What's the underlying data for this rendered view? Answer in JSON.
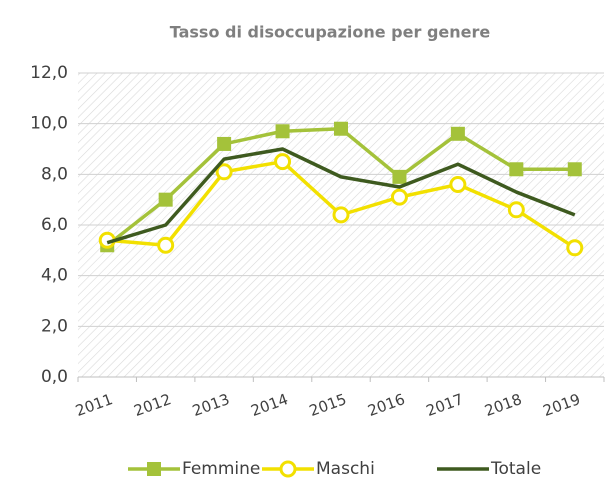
{
  "chart_data": {
    "type": "line",
    "title": "Tasso di disoccupazione per genere",
    "categories": [
      "2011",
      "2012",
      "2013",
      "2014",
      "2015",
      "2016",
      "2017",
      "2018",
      "2019"
    ],
    "series": [
      {
        "name": "Femmine",
        "color": "#a4c23a",
        "marker": "square",
        "values": [
          5.2,
          7.0,
          9.2,
          9.7,
          9.8,
          7.9,
          9.6,
          8.2,
          8.2
        ]
      },
      {
        "name": "Maschi",
        "color": "#f2e000",
        "marker": "circle",
        "values": [
          5.4,
          5.2,
          8.1,
          8.5,
          6.4,
          7.1,
          7.6,
          6.6,
          5.1
        ]
      },
      {
        "name": "Totale",
        "color": "#3e5a1f",
        "marker": "none",
        "values": [
          5.3,
          6.0,
          8.6,
          9.0,
          7.9,
          7.5,
          8.4,
          7.3,
          6.4
        ]
      }
    ],
    "ylim": [
      0,
      12
    ],
    "yticks": [
      {
        "value": 0,
        "label": "0,0"
      },
      {
        "value": 2,
        "label": "2,0"
      },
      {
        "value": 4,
        "label": "4,0"
      },
      {
        "value": 6,
        "label": "6,0"
      },
      {
        "value": 8,
        "label": "8,0"
      },
      {
        "value": 10,
        "label": "10,0"
      },
      {
        "value": 12,
        "label": "12,0"
      }
    ],
    "grid": true,
    "legend": "bottom"
  }
}
